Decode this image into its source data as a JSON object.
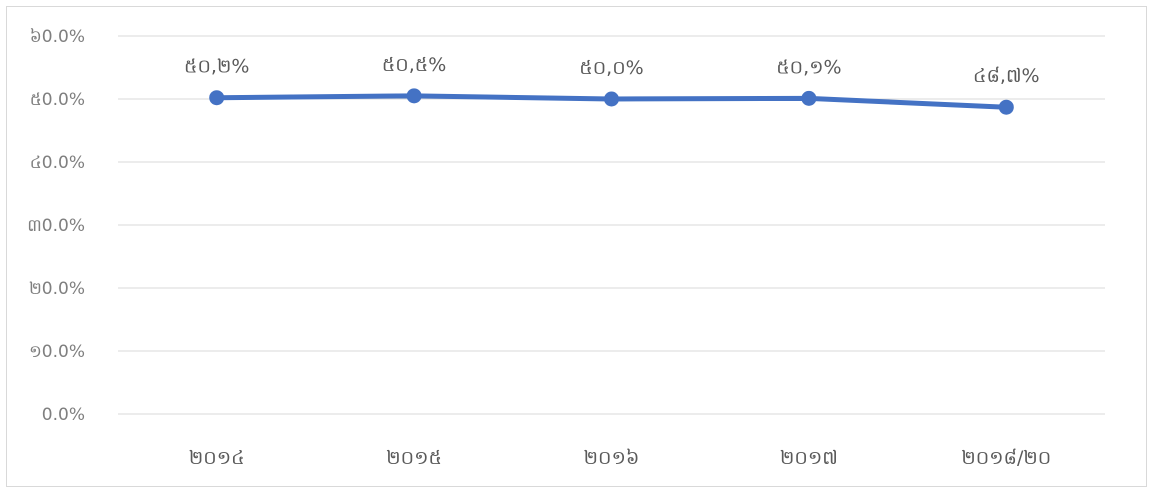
{
  "chart_data": {
    "type": "line",
    "categories": [
      "២០១៤",
      "២០១៥",
      "២០១៦",
      "២០១៧",
      "២០១៨/២០"
    ],
    "series": [
      {
        "values": [
          50.2,
          50.5,
          50.0,
          50.1,
          48.7
        ],
        "data_labels": [
          "៥០,២%",
          "៥០,៥%",
          "៥០,០%",
          "៥០,១%",
          "៤៨,៧%"
        ],
        "color": "#4472c4"
      }
    ],
    "y_ticks": [
      "0.0%",
      "១0.0%",
      "២0.0%",
      "៣0.0%",
      "៤0.0%",
      "៥0.0%",
      "៦0.0%"
    ],
    "ylim": [
      0,
      60
    ],
    "grid": true,
    "title": "",
    "xlabel": "",
    "ylabel": ""
  }
}
